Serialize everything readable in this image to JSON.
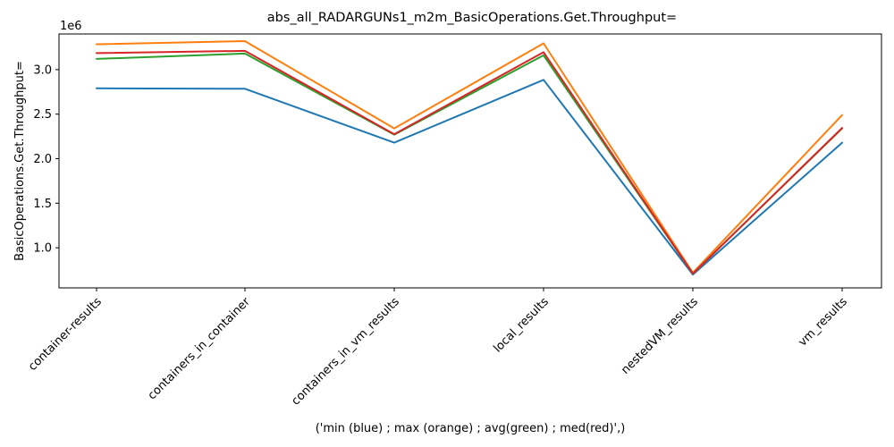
{
  "chart_data": {
    "type": "line",
    "title": "abs_all_RADARGUNs1_m2m_BasicOperations.Get.Throughput=",
    "xlabel": "('min (blue) ; max (orange) ; avg(green) ; med(red)',)",
    "ylabel": "BasicOperations.Get.Throughput=",
    "y_offset_label": "1e6",
    "categories": [
      "container-results",
      "containers_in_container",
      "containers_in_vm_results",
      "local_results",
      "nestedVM_results",
      "vm_results"
    ],
    "ylim": [
      550000,
      3400000
    ],
    "yticks": [
      1000000,
      1500000,
      2000000,
      2500000,
      3000000
    ],
    "ytick_labels": [
      "1.0",
      "1.5",
      "2.0",
      "2.5",
      "3.0"
    ],
    "grid": false,
    "legend": "none",
    "series": [
      {
        "color": "#1f77b4",
        "values": [
          2790000,
          2785000,
          2180000,
          2885000,
          700000,
          2180000
        ]
      },
      {
        "color": "#ff7f0e",
        "values": [
          3285000,
          3320000,
          2340000,
          3295000,
          720000,
          2490000
        ]
      },
      {
        "color": "#2ca02c",
        "values": [
          3120000,
          3180000,
          2270000,
          3160000,
          710000,
          2340000
        ]
      },
      {
        "color": "#d62728",
        "values": [
          3185000,
          3210000,
          2275000,
          3195000,
          710000,
          2345000
        ]
      }
    ]
  }
}
